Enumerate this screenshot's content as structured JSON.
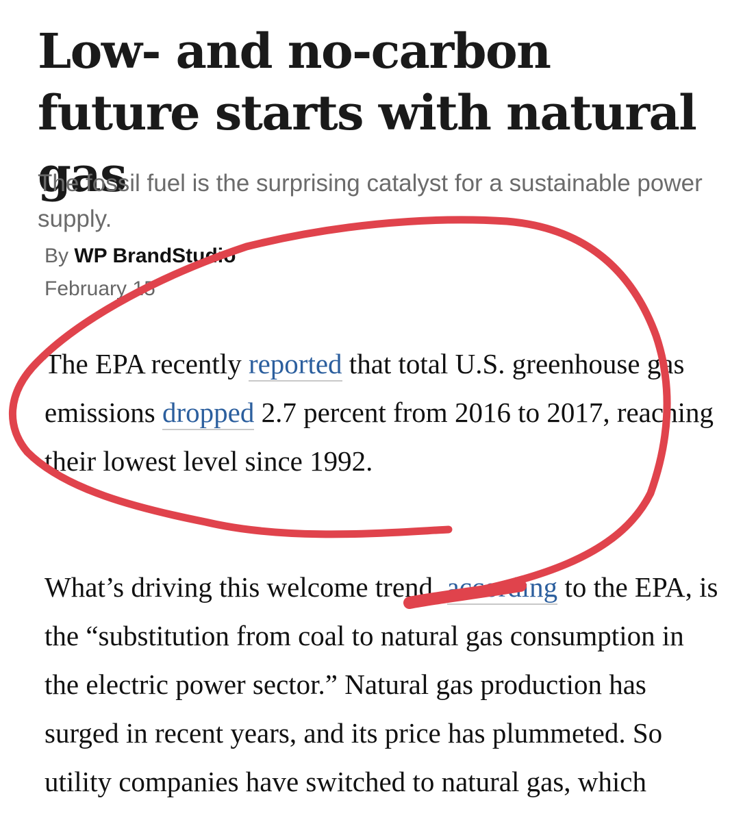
{
  "article": {
    "headline": "Low- and no-carbon future starts with natural gas",
    "subheadline": "The fossil fuel is the surprising catalyst for a sustainable power supply.",
    "byline_prefix": "By",
    "author": "WP BrandStudio",
    "date": "February 15",
    "p1": {
      "t1": "The EPA recently ",
      "link1": "reported",
      "t2": " that total U.S. greenhouse gas emissions ",
      "link2": "dropped",
      "t3": " 2.7 percent from 2016 to 2017, reaching their lowest level since 1992."
    },
    "p2": {
      "t1": "What’s driving this welcome trend, ",
      "link1": "according",
      "t2": " to the EPA, is the “substitution from coal to natural gas consumption in the electric power sector.” Natural gas production has surged in recent years, and its price has plummeted. So utility companies have switched to natural gas, which"
    }
  },
  "annotation": {
    "color": "#e0434c",
    "shape": "hand-drawn circle with tail"
  }
}
